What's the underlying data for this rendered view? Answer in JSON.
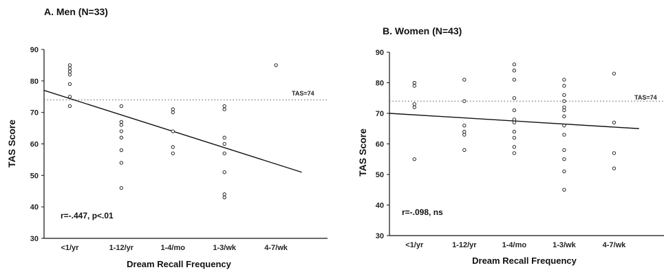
{
  "chart_data": [
    {
      "type": "scatter",
      "title": "A. Men (N=33)",
      "xlabel": "Dream Recall Frequency",
      "ylabel": "TAS Score",
      "categories": [
        "<1/yr",
        "1-12/yr",
        "1-4/mo",
        "1-3/wk",
        "4-7/wk"
      ],
      "ylim": [
        30,
        90
      ],
      "yticks": [
        30,
        40,
        50,
        60,
        70,
        80,
        90
      ],
      "reference": {
        "y": 74,
        "label": "TAS=74"
      },
      "regression": {
        "x": [
          0.5,
          5.5
        ],
        "y": [
          77,
          51
        ]
      },
      "annotation": "r=-.447, p<.01",
      "points": [
        {
          "x": 1,
          "y": 85
        },
        {
          "x": 1,
          "y": 84
        },
        {
          "x": 1,
          "y": 83
        },
        {
          "x": 1,
          "y": 82
        },
        {
          "x": 1,
          "y": 79
        },
        {
          "x": 1,
          "y": 75
        },
        {
          "x": 1,
          "y": 72
        },
        {
          "x": 2,
          "y": 72
        },
        {
          "x": 2,
          "y": 67
        },
        {
          "x": 2,
          "y": 66
        },
        {
          "x": 2,
          "y": 64
        },
        {
          "x": 2,
          "y": 62
        },
        {
          "x": 2,
          "y": 58
        },
        {
          "x": 2,
          "y": 54
        },
        {
          "x": 2,
          "y": 46
        },
        {
          "x": 3,
          "y": 71
        },
        {
          "x": 3,
          "y": 70
        },
        {
          "x": 3,
          "y": 64
        },
        {
          "x": 3,
          "y": 59
        },
        {
          "x": 3,
          "y": 57
        },
        {
          "x": 4,
          "y": 72
        },
        {
          "x": 4,
          "y": 71
        },
        {
          "x": 4,
          "y": 62
        },
        {
          "x": 4,
          "y": 60
        },
        {
          "x": 4,
          "y": 57
        },
        {
          "x": 4,
          "y": 51
        },
        {
          "x": 4,
          "y": 44
        },
        {
          "x": 4,
          "y": 43
        },
        {
          "x": 5,
          "y": 85
        }
      ]
    },
    {
      "type": "scatter",
      "title": "B. Women (N=43)",
      "xlabel": "Dream Recall Frequency",
      "ylabel": "TAS Score",
      "categories": [
        "<1/yr",
        "1-12/yr",
        "1-4/mo",
        "1-3/wk",
        "4-7/wk"
      ],
      "ylim": [
        30,
        90
      ],
      "yticks": [
        30,
        40,
        50,
        60,
        70,
        80,
        90
      ],
      "reference": {
        "y": 74,
        "label": "TAS=74"
      },
      "regression": {
        "x": [
          0.5,
          5.5
        ],
        "y": [
          70,
          65
        ]
      },
      "annotation": "r=-.098, ns",
      "points": [
        {
          "x": 1,
          "y": 80
        },
        {
          "x": 1,
          "y": 79
        },
        {
          "x": 1,
          "y": 73
        },
        {
          "x": 1,
          "y": 72
        },
        {
          "x": 1,
          "y": 55
        },
        {
          "x": 2,
          "y": 81
        },
        {
          "x": 2,
          "y": 74
        },
        {
          "x": 2,
          "y": 66
        },
        {
          "x": 2,
          "y": 64
        },
        {
          "x": 2,
          "y": 63
        },
        {
          "x": 2,
          "y": 58
        },
        {
          "x": 3,
          "y": 86
        },
        {
          "x": 3,
          "y": 84
        },
        {
          "x": 3,
          "y": 81
        },
        {
          "x": 3,
          "y": 75
        },
        {
          "x": 3,
          "y": 71
        },
        {
          "x": 3,
          "y": 68
        },
        {
          "x": 3,
          "y": 67
        },
        {
          "x": 3,
          "y": 64
        },
        {
          "x": 3,
          "y": 62
        },
        {
          "x": 3,
          "y": 59
        },
        {
          "x": 3,
          "y": 57
        },
        {
          "x": 4,
          "y": 81
        },
        {
          "x": 4,
          "y": 79
        },
        {
          "x": 4,
          "y": 76
        },
        {
          "x": 4,
          "y": 74
        },
        {
          "x": 4,
          "y": 72
        },
        {
          "x": 4,
          "y": 71
        },
        {
          "x": 4,
          "y": 69
        },
        {
          "x": 4,
          "y": 66
        },
        {
          "x": 4,
          "y": 63
        },
        {
          "x": 4,
          "y": 58
        },
        {
          "x": 4,
          "y": 55
        },
        {
          "x": 4,
          "y": 51
        },
        {
          "x": 4,
          "y": 45
        },
        {
          "x": 5,
          "y": 83
        },
        {
          "x": 5,
          "y": 67
        },
        {
          "x": 5,
          "y": 57
        },
        {
          "x": 5,
          "y": 52
        }
      ]
    }
  ]
}
